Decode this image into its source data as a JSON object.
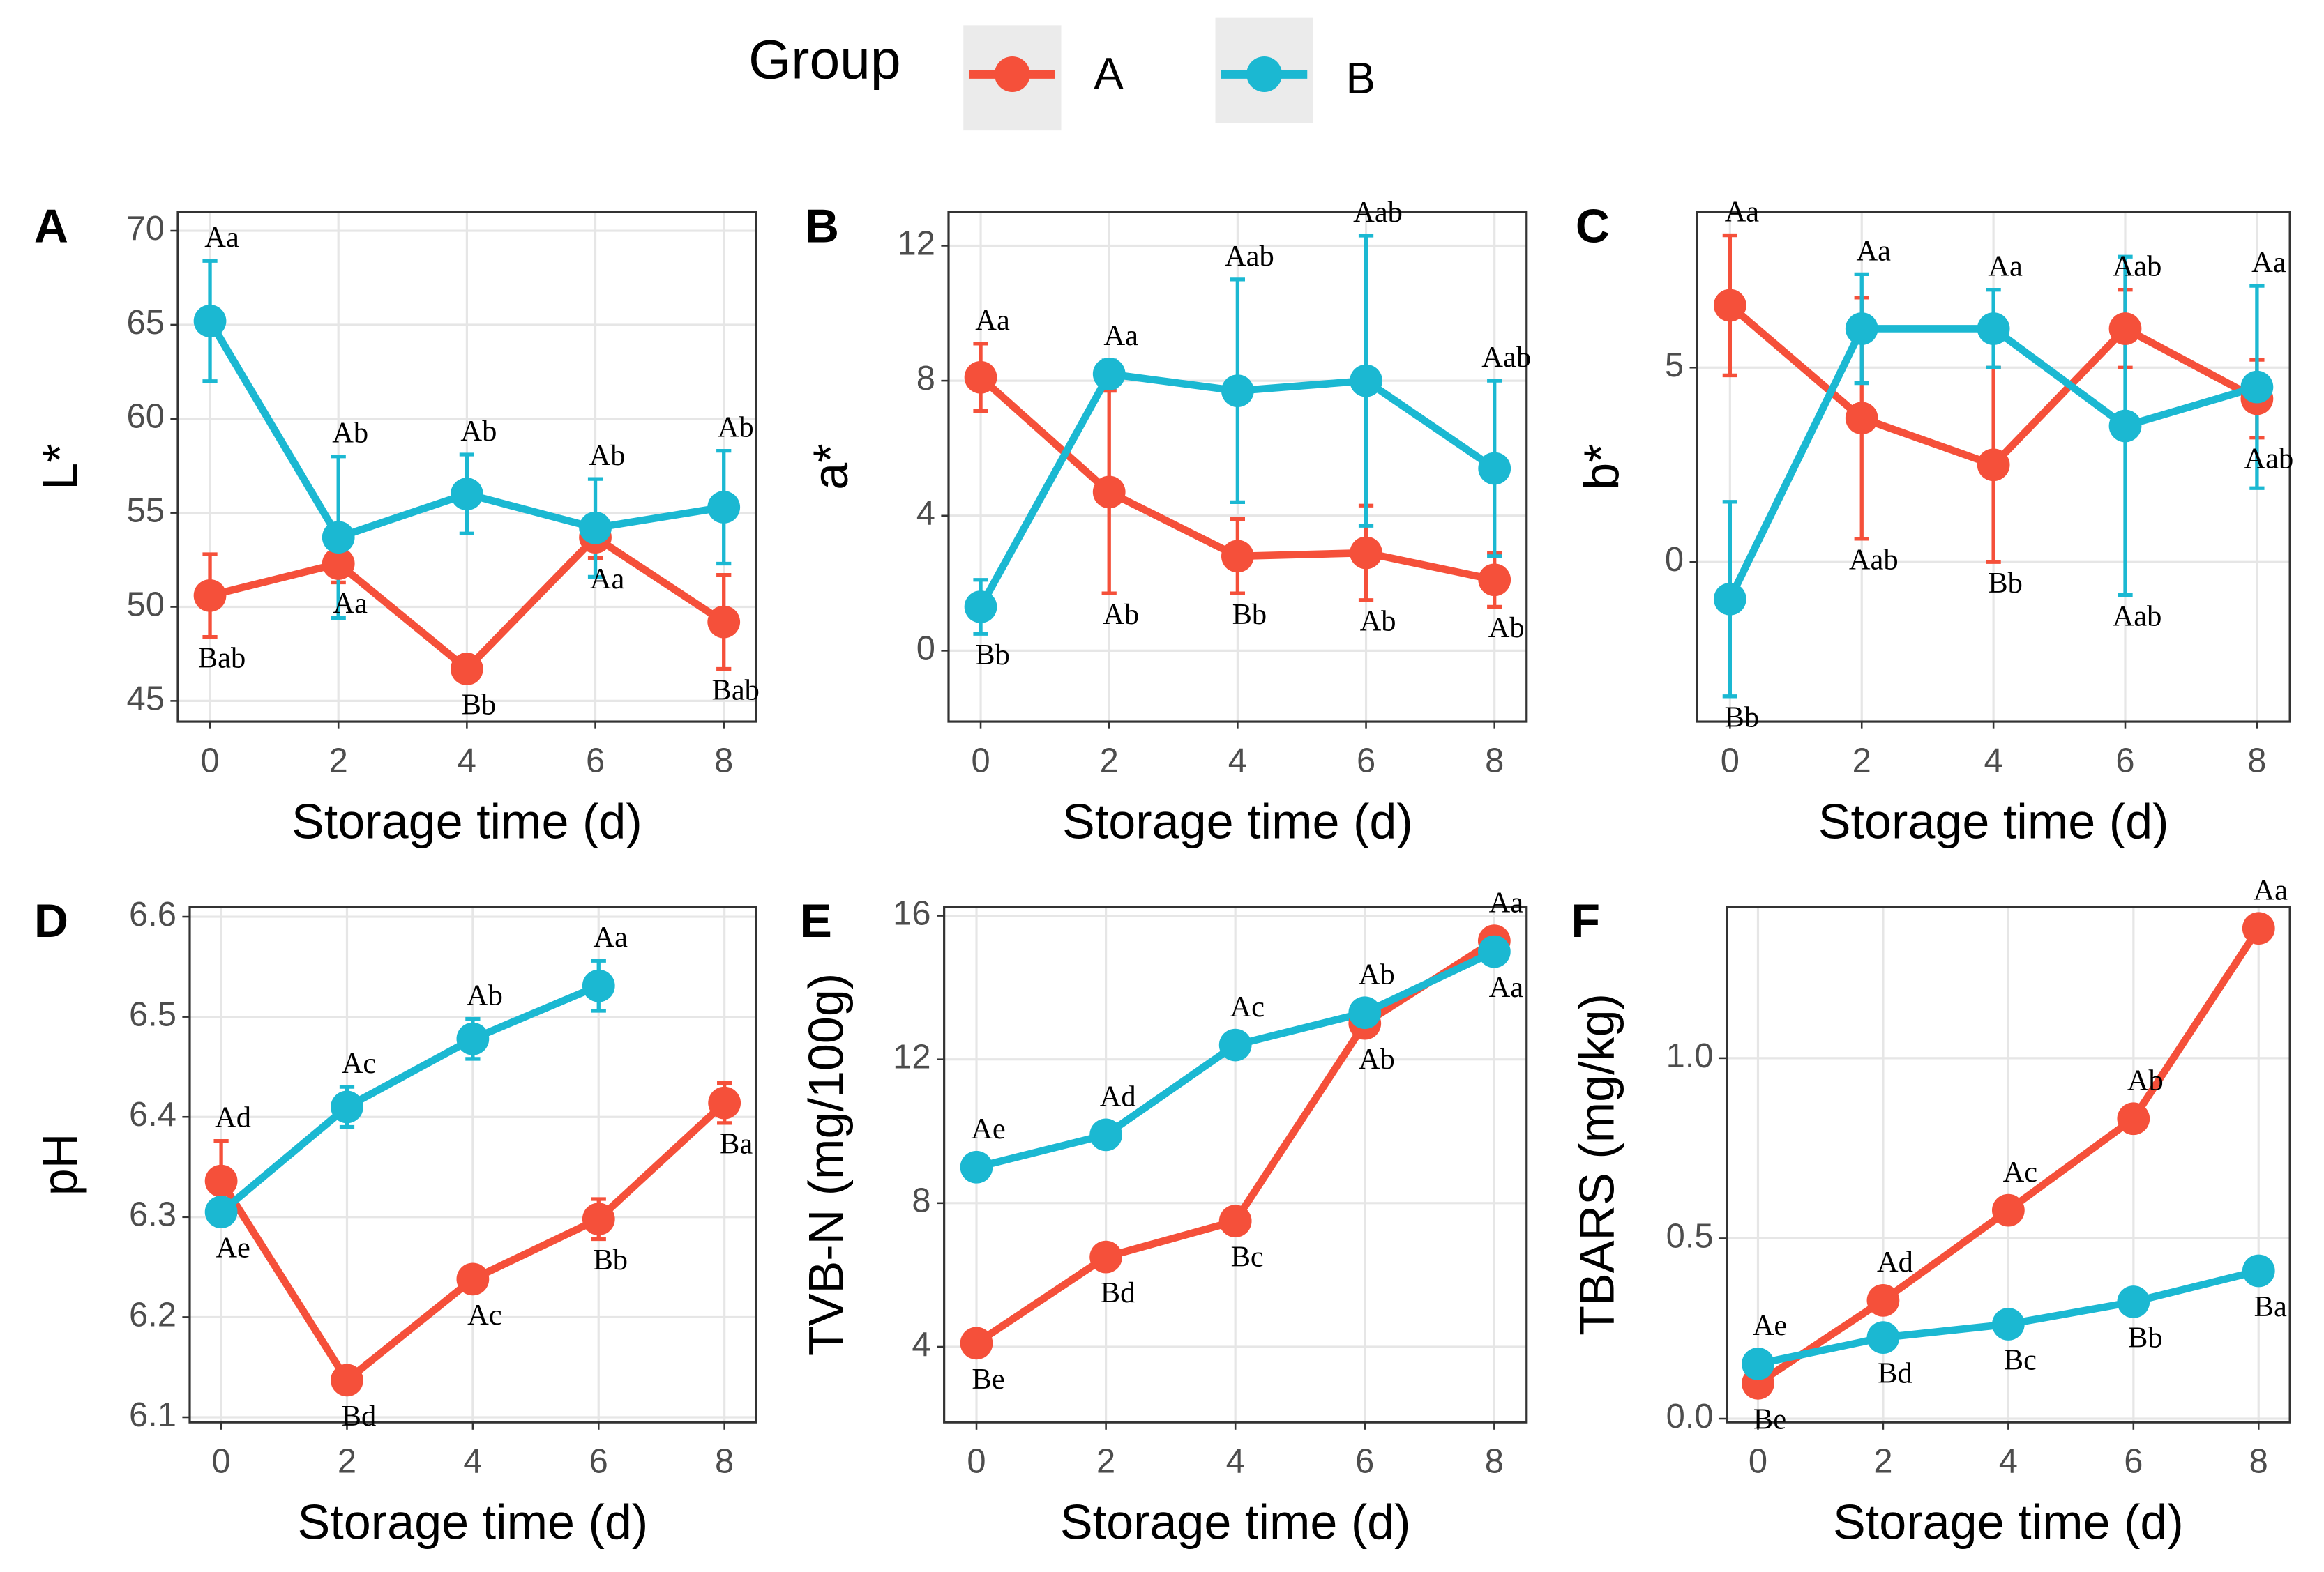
{
  "legend_title": "Group",
  "chart_data": [
    {
      "type": "line",
      "panel": "A",
      "xlabel": "Storage time (d)",
      "ylabel": "L*",
      "x": [
        0,
        2,
        4,
        6,
        8
      ],
      "xlim": [
        -0.5,
        8.5
      ],
      "xticks": [
        0,
        2,
        4,
        6,
        8
      ],
      "ylim": [
        43.9,
        71.0
      ],
      "yticks": [
        45,
        50,
        55,
        60,
        65,
        70
      ],
      "grid": true,
      "series": [
        {
          "name": "A",
          "color": "#f5503a",
          "values": [
            50.6,
            52.3,
            46.7,
            53.7,
            49.2
          ],
          "errors": [
            2.2,
            1.0,
            0.5,
            1.1,
            2.5
          ],
          "labels": [
            "Bab",
            "Aa",
            "Bb",
            "Aa",
            "Bab"
          ]
        },
        {
          "name": "B",
          "color": "#1bb8d2",
          "values": [
            65.2,
            53.7,
            56.0,
            54.2,
            55.3
          ],
          "errors": [
            3.2,
            4.3,
            2.1,
            2.6,
            3.0
          ],
          "labels": [
            "Aa",
            "Ab",
            "Ab",
            "Ab",
            "Ab"
          ]
        }
      ]
    },
    {
      "type": "line",
      "panel": "B",
      "xlabel": "Storage time (d)",
      "ylabel": "a*",
      "x": [
        0,
        2,
        4,
        6,
        8
      ],
      "xlim": [
        -0.5,
        8.5
      ],
      "xticks": [
        0,
        2,
        4,
        6,
        8
      ],
      "ylim": [
        -2.1,
        13.0
      ],
      "yticks": [
        0,
        4,
        8,
        12
      ],
      "grid": true,
      "series": [
        {
          "name": "A",
          "color": "#f5503a",
          "values": [
            8.1,
            4.7,
            2.8,
            2.9,
            2.1
          ],
          "errors": [
            1.0,
            3.0,
            1.1,
            1.4,
            0.8
          ],
          "labels": [
            "Aa",
            "Ab",
            "Bb",
            "Ab",
            "Ab"
          ]
        },
        {
          "name": "B",
          "color": "#1bb8d2",
          "values": [
            1.3,
            8.2,
            7.7,
            8.0,
            5.4
          ],
          "errors": [
            0.8,
            0.4,
            3.3,
            4.3,
            2.6
          ],
          "labels": [
            "Bb",
            "Aa",
            "Aab",
            "Aab",
            "Aab"
          ]
        }
      ]
    },
    {
      "type": "line",
      "panel": "C",
      "xlabel": "Storage time (d)",
      "ylabel": "b*",
      "x": [
        0,
        2,
        4,
        6,
        8
      ],
      "xlim": [
        -0.5,
        8.5
      ],
      "xticks": [
        0,
        2,
        4,
        6,
        8
      ],
      "ylim": [
        -4.1,
        9.0
      ],
      "yticks": [
        0,
        5
      ],
      "grid": true,
      "series": [
        {
          "name": "A",
          "color": "#f5503a",
          "values": [
            6.6,
            3.7,
            2.5,
            6.0,
            4.2
          ],
          "errors": [
            1.8,
            3.1,
            2.5,
            1.0,
            1.0
          ],
          "labels": [
            "Aa",
            "Aab",
            "Bb",
            "Aab",
            "Aab"
          ]
        },
        {
          "name": "B",
          "color": "#1bb8d2",
          "values": [
            -0.95,
            6.0,
            6.0,
            3.5,
            4.5
          ],
          "errors": [
            2.5,
            1.4,
            1.0,
            4.35,
            2.6
          ],
          "labels": [
            "Bb",
            "Aa",
            "Aa",
            "Aab",
            "Aa"
          ]
        }
      ]
    },
    {
      "type": "line",
      "panel": "D",
      "xlabel": "Storage time (d)",
      "ylabel": "pH",
      "x": [
        0,
        2,
        4,
        6,
        8
      ],
      "xlim": [
        -0.5,
        8.5
      ],
      "xticks": [
        0,
        2,
        4,
        6,
        8
      ],
      "ylim": [
        6.095,
        6.61
      ],
      "yticks": [
        6.1,
        6.2,
        6.3,
        6.4,
        6.5,
        6.6
      ],
      "grid": true,
      "series": [
        {
          "name": "A",
          "color": "#f5503a",
          "values": [
            6.336,
            6.137,
            6.238,
            6.298,
            6.414
          ],
          "errors": [
            0.04,
            0.01,
            0.01,
            0.02,
            0.02
          ],
          "labels": [
            "Ad",
            "Bd",
            "Ac",
            "Bb",
            "Ba"
          ]
        },
        {
          "name": "B",
          "color": "#1bb8d2",
          "values": [
            6.305,
            6.41,
            6.478,
            6.531,
            null
          ],
          "errors": [
            0.01,
            0.02,
            0.02,
            0.025,
            null
          ],
          "labels": [
            "Ae",
            "Ac",
            "Ab",
            "Aa",
            null
          ]
        }
      ]
    },
    {
      "type": "line",
      "panel": "E",
      "xlabel": "Storage time (d)",
      "ylabel": "TVB-N (mg/100g)",
      "x": [
        0,
        2,
        4,
        6,
        8
      ],
      "xlim": [
        -0.5,
        8.5
      ],
      "xticks": [
        0,
        2,
        4,
        6,
        8
      ],
      "ylim": [
        1.9,
        16.25
      ],
      "yticks": [
        4,
        8,
        12,
        16
      ],
      "grid": true,
      "series": [
        {
          "name": "A",
          "color": "#f5503a",
          "values": [
            4.1,
            6.5,
            7.5,
            13.0,
            15.3
          ],
          "errors": [
            0.2,
            0.2,
            0.2,
            0.2,
            0.2
          ],
          "labels": [
            "Be",
            "Bd",
            "Bc",
            "Ab",
            "Aa"
          ]
        },
        {
          "name": "B",
          "color": "#1bb8d2",
          "values": [
            9.0,
            9.9,
            12.4,
            13.3,
            15.0
          ],
          "errors": [
            0.2,
            0.2,
            0.2,
            0.2,
            0.2
          ],
          "labels": [
            "Ae",
            "Ad",
            "Ac",
            "Ab",
            "Aa"
          ]
        }
      ]
    },
    {
      "type": "line",
      "panel": "F",
      "xlabel": "Storage time (d)",
      "ylabel": "TBARS (mg/kg)",
      "x": [
        0,
        2,
        4,
        6,
        8
      ],
      "xlim": [
        -0.5,
        8.5
      ],
      "xticks": [
        0,
        2,
        4,
        6,
        8
      ],
      "ylim": [
        -0.01,
        1.42
      ],
      "yticks": [
        {
          "value": 0,
          "label": "0.0"
        },
        0.5,
        {
          "value": 1,
          "label": "1.0"
        }
      ],
      "grid": true,
      "series": [
        {
          "name": "A",
          "color": "#f5503a",
          "values": [
            0.098,
            0.328,
            0.578,
            0.832,
            1.36
          ],
          "errors": [
            0.01,
            0.01,
            0.03,
            0.01,
            0.01
          ],
          "labels": [
            "Be",
            "Ad",
            "Ac",
            "Ab",
            "Aa"
          ]
        },
        {
          "name": "B",
          "color": "#1bb8d2",
          "values": [
            0.152,
            0.225,
            0.262,
            0.324,
            0.41
          ],
          "errors": [
            0.01,
            0.01,
            0.01,
            0.01,
            0.01
          ],
          "labels": [
            "Ae",
            "Bd",
            "Bc",
            "Bb",
            "Ba"
          ]
        }
      ]
    }
  ]
}
